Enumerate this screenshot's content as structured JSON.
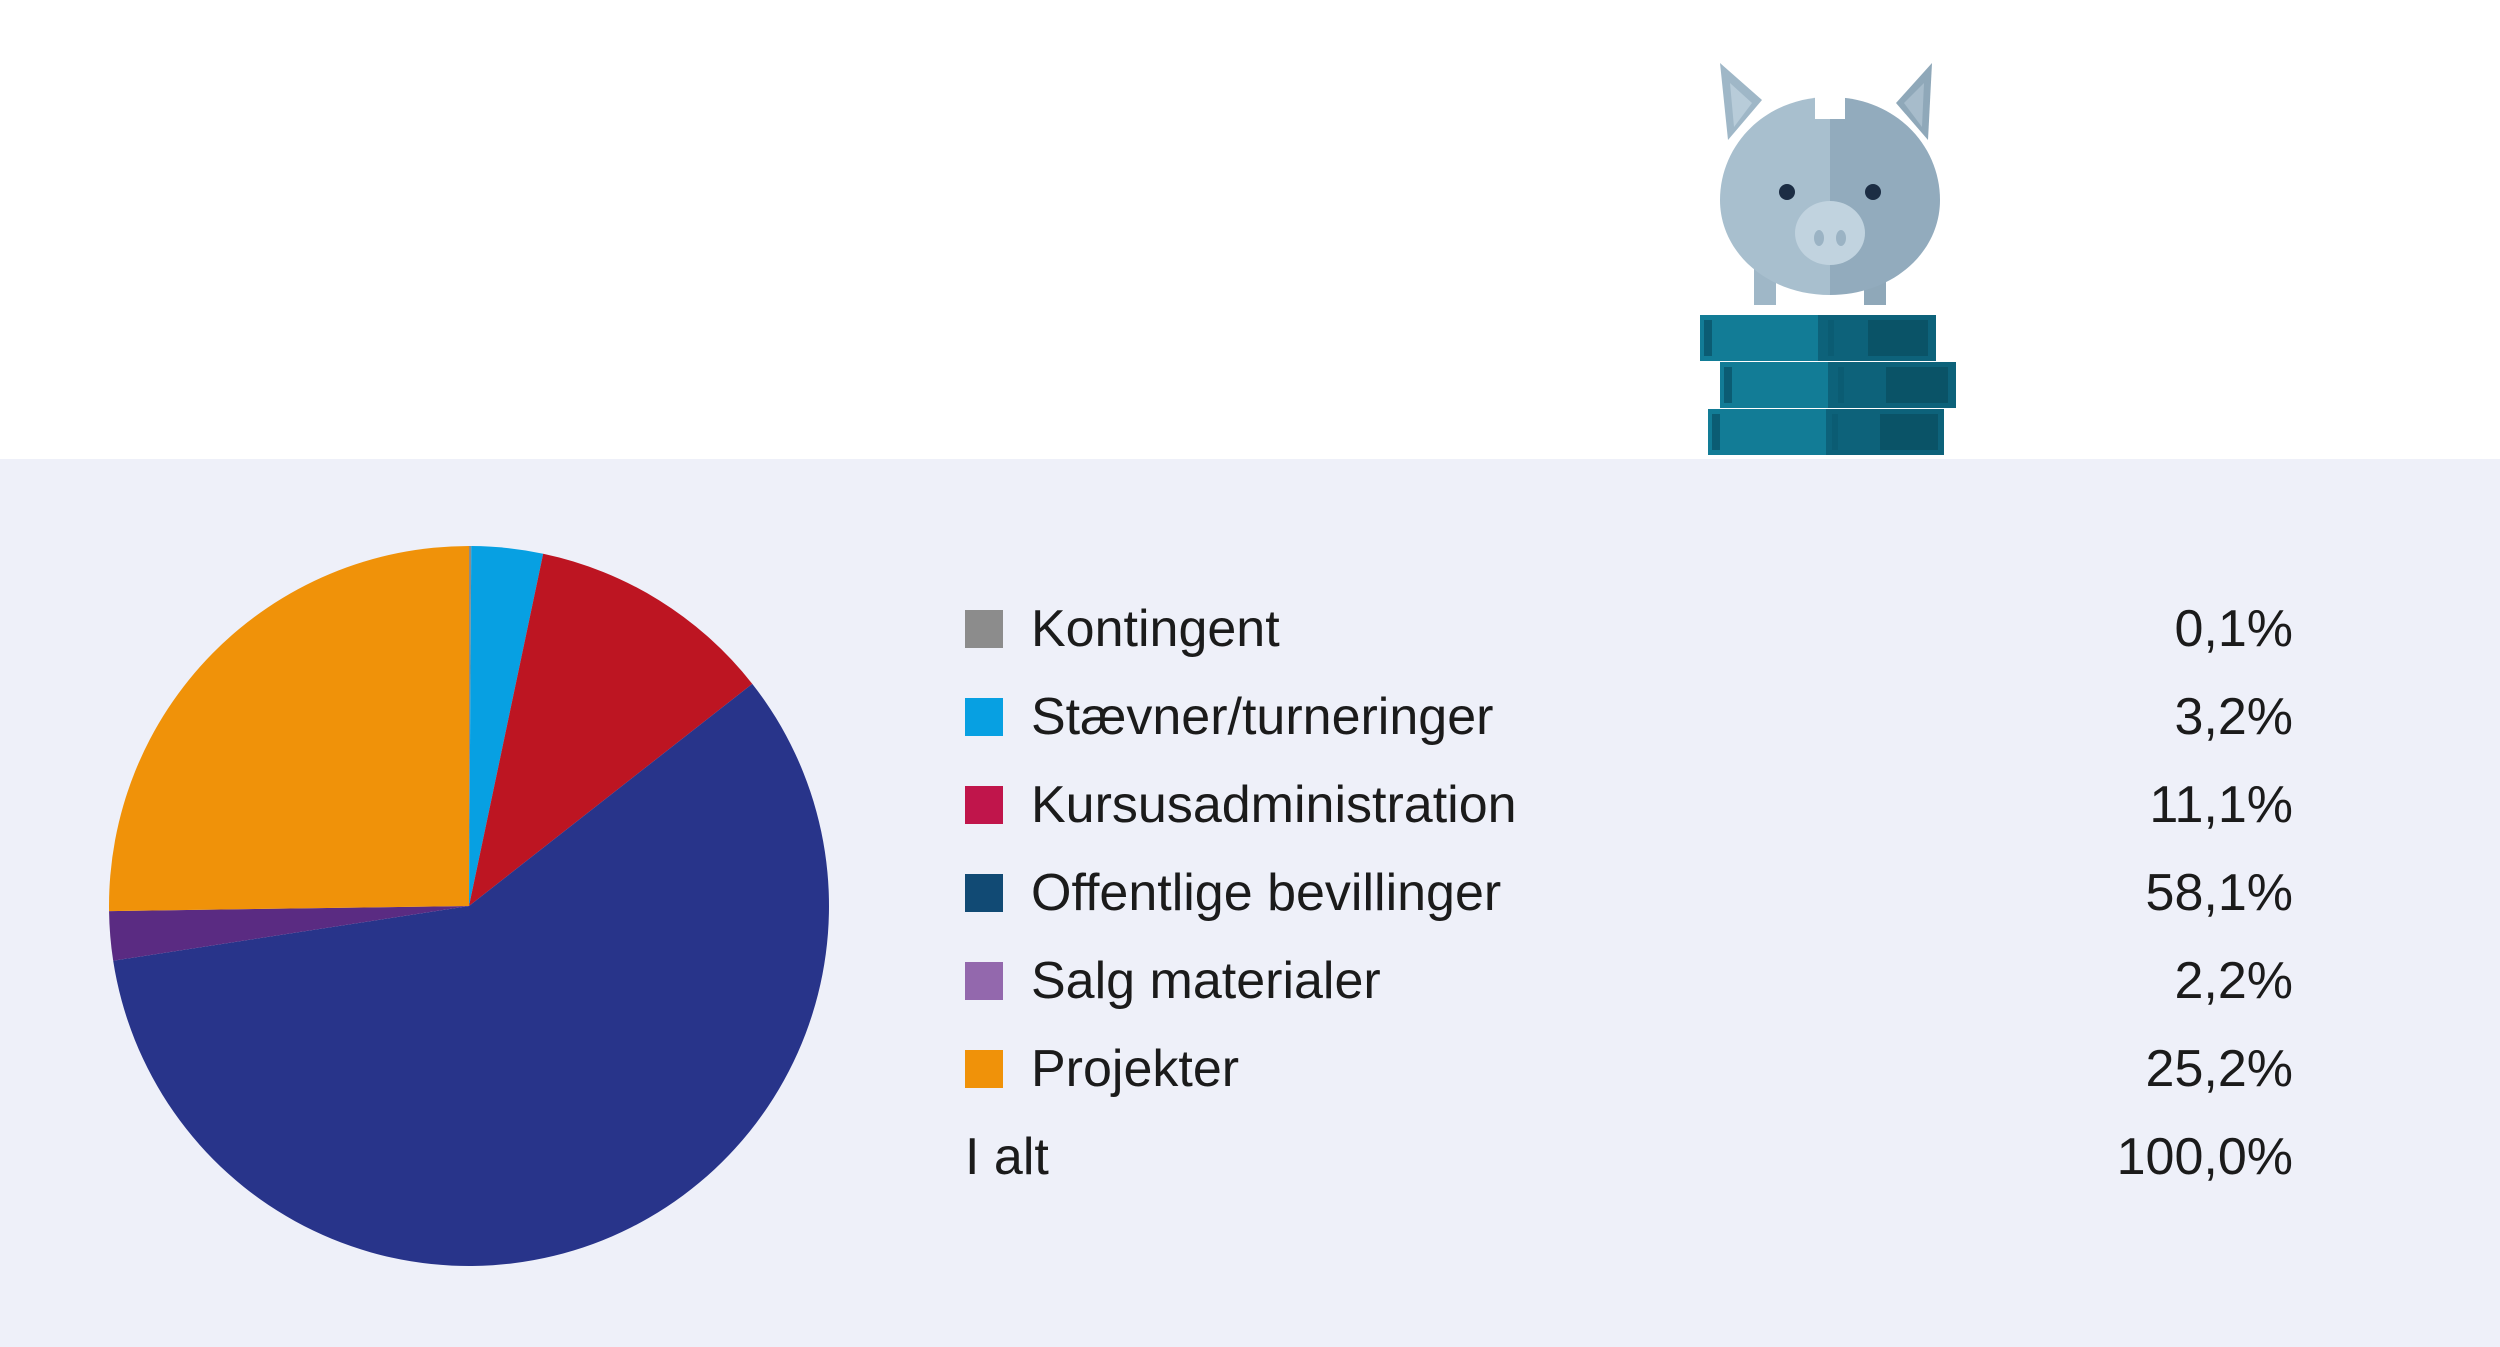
{
  "colors": {
    "top_background": "#ffffff",
    "panel_background": "#eef0f9",
    "text": "#1b1b1b"
  },
  "chart_data": {
    "type": "pie",
    "start_angle_deg": 0,
    "direction": "clockwise",
    "slices": [
      {
        "label": "Kontingent",
        "value": 0.1,
        "display": "0,1%",
        "color": "#8c8c8c",
        "legend_color": "#8c8c8c"
      },
      {
        "label": "Stævner/turneringer",
        "value": 3.2,
        "display": "3,2%",
        "color": "#07a0e2",
        "legend_color": "#07a0e2"
      },
      {
        "label": "Kursusadministration",
        "value": 11.1,
        "display": "11,1%",
        "color": "#bd1522",
        "legend_color": "#c0154b"
      },
      {
        "label": "Offentlige bevillinger",
        "value": 58.1,
        "display": "58,1%",
        "color": "#28348a",
        "legend_color": "#114a74"
      },
      {
        "label": "Salg materialer",
        "value": 2.2,
        "display": "2,2%",
        "color": "#5a2b82",
        "legend_color": "#9368ad"
      },
      {
        "label": "Projekter",
        "value": 25.2,
        "display": "25,2%",
        "color": "#f09209",
        "legend_color": "#f09209"
      }
    ],
    "total": {
      "label": "I alt",
      "display": "100,0%"
    }
  },
  "illustration": {
    "icon": "piggy-bank-on-coins-icon"
  }
}
